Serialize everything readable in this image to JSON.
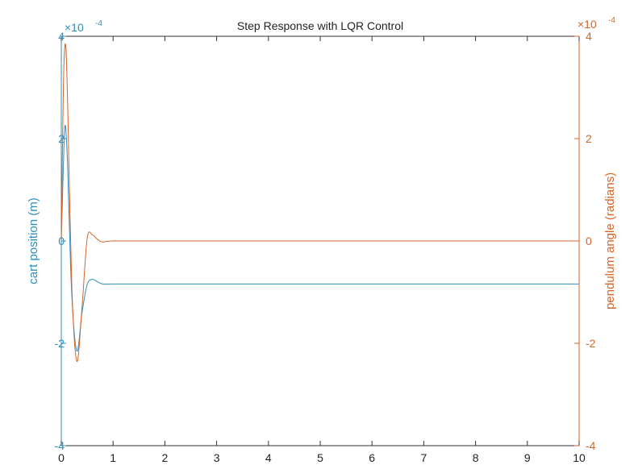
{
  "chart_data": {
    "type": "line",
    "title": "Step Response with LQR Control",
    "xlabel": "",
    "xlim": [
      0,
      10
    ],
    "xticks": [
      "0",
      "1",
      "2",
      "3",
      "4",
      "5",
      "6",
      "7",
      "8",
      "9",
      "10"
    ],
    "left_axis": {
      "label": "cart position (m)",
      "exponent": "×10^-4",
      "exp_base": "×10",
      "exp_power": "-4",
      "ylim": [
        -4,
        4
      ],
      "ticks": [
        "4",
        "2",
        "0",
        "-2",
        "-4"
      ],
      "color": "#2c8fbf"
    },
    "right_axis": {
      "label": "pendulum angle (radians)",
      "exponent": "×10^-4",
      "exp_base": "×10",
      "exp_power": "-4",
      "ylim": [
        -4,
        4
      ],
      "ticks": [
        "4",
        "2",
        "0",
        "-2",
        "-4"
      ],
      "color": "#d4652a"
    },
    "series": [
      {
        "name": "cart position",
        "axis": "left",
        "color": "#2c8fbf",
        "x": [
          0,
          0.05,
          0.08,
          0.12,
          0.2,
          0.3,
          0.4,
          0.5,
          0.6,
          0.7,
          0.8,
          1.0,
          2,
          10
        ],
        "y": [
          0,
          1.8,
          2.25,
          1.5,
          -1.0,
          -2.15,
          -1.4,
          -0.85,
          -0.75,
          -0.8,
          -0.84,
          -0.84,
          -0.84,
          -0.84
        ]
      },
      {
        "name": "pendulum angle",
        "axis": "right",
        "color": "#d4652a",
        "x": [
          0,
          0.04,
          0.08,
          0.12,
          0.2,
          0.3,
          0.4,
          0.5,
          0.6,
          0.7,
          0.8,
          1.0,
          2,
          10
        ],
        "y": [
          0,
          3.0,
          3.85,
          2.8,
          -0.8,
          -2.35,
          -1.3,
          0.05,
          0.12,
          0.03,
          -0.02,
          0,
          0,
          0
        ]
      }
    ]
  }
}
